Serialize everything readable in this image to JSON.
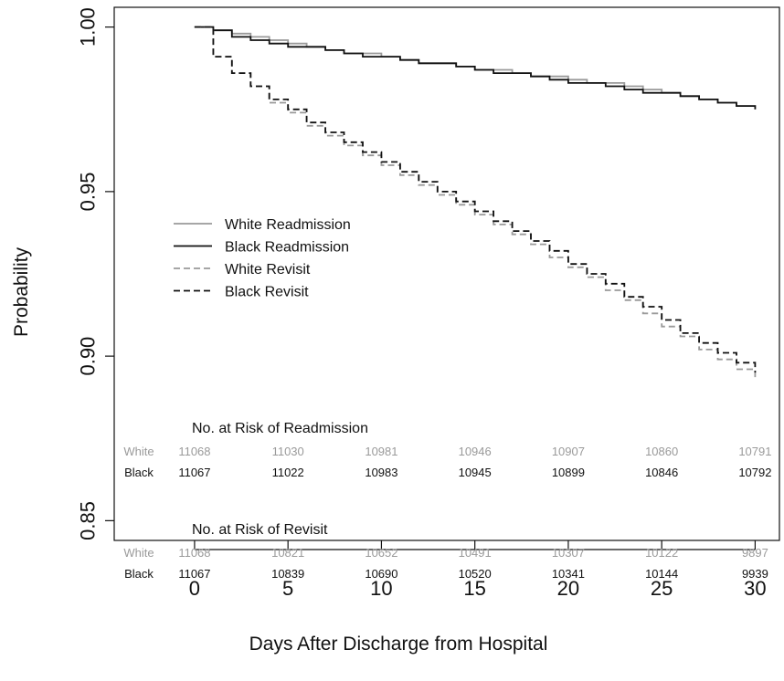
{
  "chart_data": {
    "type": "line",
    "title": "",
    "xlabel": "Days After Discharge from Hospital",
    "ylabel": "Probability",
    "xlim": [
      -4.3,
      31.3
    ],
    "ylim": [
      0.844,
      1.006
    ],
    "x_ticks": [
      "0",
      "5",
      "10",
      "15",
      "20",
      "25",
      "30"
    ],
    "y_ticks": [
      "0.85",
      "0.90",
      "0.95",
      "1.00"
    ],
    "legend_position": "left-middle",
    "series": [
      {
        "name": "White Readmission",
        "color": "#9a9a9a",
        "style": "solid",
        "x": [
          0,
          1,
          2,
          3,
          4,
          5,
          6,
          7,
          8,
          9,
          10,
          11,
          12,
          13,
          14,
          15,
          16,
          17,
          18,
          19,
          20,
          21,
          22,
          23,
          24,
          25,
          26,
          27,
          28,
          29,
          30
        ],
        "y": [
          1.0,
          0.999,
          0.998,
          0.997,
          0.996,
          0.995,
          0.994,
          0.993,
          0.992,
          0.992,
          0.991,
          0.99,
          0.989,
          0.989,
          0.988,
          0.987,
          0.987,
          0.986,
          0.985,
          0.985,
          0.984,
          0.983,
          0.983,
          0.982,
          0.981,
          0.98,
          0.979,
          0.978,
          0.977,
          0.976,
          0.975
        ]
      },
      {
        "name": "Black Readmission",
        "color": "#111111",
        "style": "solid",
        "x": [
          0,
          1,
          2,
          3,
          4,
          5,
          6,
          7,
          8,
          9,
          10,
          11,
          12,
          13,
          14,
          15,
          16,
          17,
          18,
          19,
          20,
          21,
          22,
          23,
          24,
          25,
          26,
          27,
          28,
          29,
          30
        ],
        "y": [
          1.0,
          0.999,
          0.997,
          0.996,
          0.995,
          0.994,
          0.994,
          0.993,
          0.992,
          0.991,
          0.991,
          0.99,
          0.989,
          0.989,
          0.988,
          0.987,
          0.986,
          0.986,
          0.985,
          0.984,
          0.983,
          0.983,
          0.982,
          0.981,
          0.98,
          0.98,
          0.979,
          0.978,
          0.977,
          0.976,
          0.975
        ]
      },
      {
        "name": "White Revisit",
        "color": "#9a9a9a",
        "style": "dashed",
        "x": [
          0,
          1,
          2,
          3,
          4,
          5,
          6,
          7,
          8,
          9,
          10,
          11,
          12,
          13,
          14,
          15,
          16,
          17,
          18,
          19,
          20,
          21,
          22,
          23,
          24,
          25,
          26,
          27,
          28,
          29,
          30
        ],
        "y": [
          1.0,
          0.991,
          0.986,
          0.982,
          0.977,
          0.974,
          0.97,
          0.967,
          0.964,
          0.961,
          0.958,
          0.955,
          0.952,
          0.949,
          0.946,
          0.943,
          0.94,
          0.937,
          0.934,
          0.93,
          0.927,
          0.924,
          0.92,
          0.917,
          0.913,
          0.909,
          0.906,
          0.902,
          0.899,
          0.896,
          0.893
        ]
      },
      {
        "name": "Black Revisit",
        "color": "#111111",
        "style": "dashed",
        "x": [
          0,
          1,
          2,
          3,
          4,
          5,
          6,
          7,
          8,
          9,
          10,
          11,
          12,
          13,
          14,
          15,
          16,
          17,
          18,
          19,
          20,
          21,
          22,
          23,
          24,
          25,
          26,
          27,
          28,
          29,
          30
        ],
        "y": [
          1.0,
          0.991,
          0.986,
          0.982,
          0.978,
          0.975,
          0.971,
          0.968,
          0.965,
          0.962,
          0.959,
          0.956,
          0.953,
          0.95,
          0.947,
          0.944,
          0.941,
          0.938,
          0.935,
          0.932,
          0.928,
          0.925,
          0.922,
          0.918,
          0.915,
          0.911,
          0.907,
          0.904,
          0.901,
          0.898,
          0.895
        ]
      }
    ],
    "risk_tables": [
      {
        "title": "No. at Risk of Readmission",
        "rows": [
          {
            "label": "White",
            "color": "#9a9a9a",
            "values": [
              "11068",
              "11030",
              "10981",
              "10946",
              "10907",
              "10860",
              "10791"
            ]
          },
          {
            "label": "Black",
            "color": "#111111",
            "values": [
              "11067",
              "11022",
              "10983",
              "10945",
              "10899",
              "10846",
              "10792"
            ]
          }
        ]
      },
      {
        "title": "No. at Risk of Revisit",
        "rows": [
          {
            "label": "White",
            "color": "#9a9a9a",
            "values": [
              "11068",
              "10821",
              "10652",
              "10491",
              "10307",
              "10122",
              "9897"
            ]
          },
          {
            "label": "Black",
            "color": "#111111",
            "values": [
              "11067",
              "10839",
              "10690",
              "10520",
              "10341",
              "10144",
              "9939"
            ]
          }
        ]
      }
    ]
  }
}
